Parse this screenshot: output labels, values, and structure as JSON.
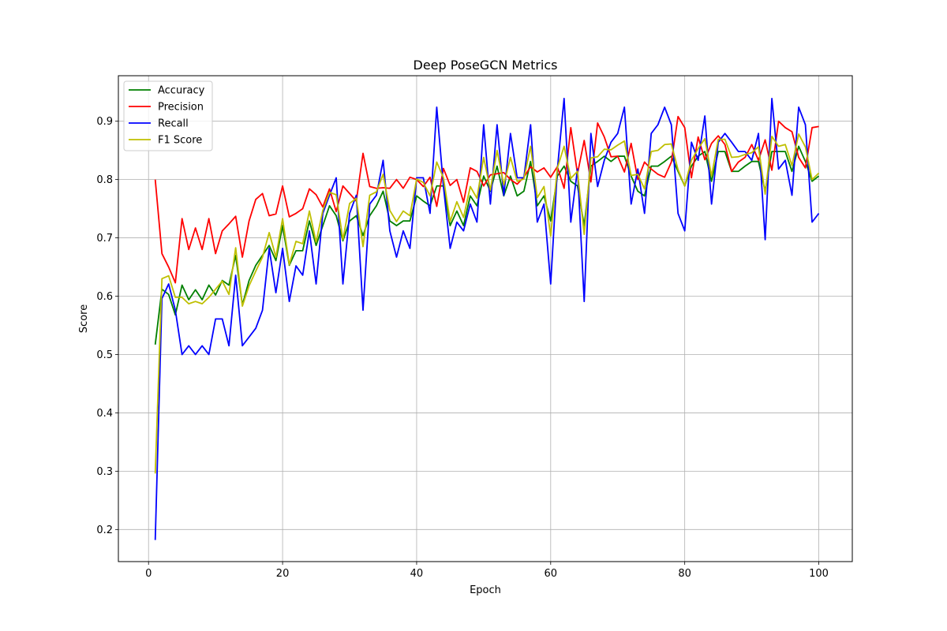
{
  "chart_data": {
    "type": "line",
    "title": "Deep PoseGCN Metrics",
    "xlabel": "Epoch",
    "ylabel": "Score",
    "xlim": [
      -4.5,
      105
    ],
    "ylim": [
      0.145,
      0.978
    ],
    "xticks": [
      0,
      20,
      40,
      60,
      80,
      100
    ],
    "yticks": [
      0.2,
      0.3,
      0.4,
      0.5,
      0.6,
      0.7,
      0.8,
      0.9
    ],
    "grid": true,
    "legend_position": "top-left",
    "x": [
      1,
      2,
      3,
      4,
      5,
      6,
      7,
      8,
      9,
      10,
      11,
      12,
      13,
      14,
      15,
      16,
      17,
      18,
      19,
      20,
      21,
      22,
      23,
      24,
      25,
      26,
      27,
      28,
      29,
      30,
      31,
      32,
      33,
      34,
      35,
      36,
      37,
      38,
      39,
      40,
      41,
      42,
      43,
      44,
      45,
      46,
      47,
      48,
      49,
      50,
      51,
      52,
      53,
      54,
      55,
      56,
      57,
      58,
      59,
      60,
      61,
      62,
      63,
      64,
      65,
      66,
      67,
      68,
      69,
      70,
      71,
      72,
      73,
      74,
      75,
      76,
      77,
      78,
      79,
      80,
      81,
      82,
      83,
      84,
      85,
      86,
      87,
      88,
      89,
      90,
      91,
      92,
      93,
      94,
      95,
      96,
      97,
      98,
      99,
      100
    ],
    "series": [
      {
        "name": "Accuracy",
        "color": "#008000",
        "values": [
          0.517,
          0.612,
          0.603,
          0.568,
          0.619,
          0.594,
          0.611,
          0.594,
          0.619,
          0.602,
          0.627,
          0.619,
          0.67,
          0.585,
          0.627,
          0.653,
          0.67,
          0.687,
          0.661,
          0.721,
          0.653,
          0.678,
          0.678,
          0.729,
          0.687,
          0.721,
          0.755,
          0.738,
          0.695,
          0.729,
          0.738,
          0.704,
          0.738,
          0.755,
          0.78,
          0.729,
          0.721,
          0.729,
          0.729,
          0.772,
          0.763,
          0.755,
          0.789,
          0.789,
          0.721,
          0.746,
          0.721,
          0.772,
          0.755,
          0.806,
          0.78,
          0.823,
          0.772,
          0.806,
          0.772,
          0.78,
          0.831,
          0.755,
          0.772,
          0.729,
          0.806,
          0.823,
          0.797,
          0.789,
          0.721,
          0.823,
          0.831,
          0.84,
          0.831,
          0.84,
          0.84,
          0.806,
          0.78,
          0.772,
          0.823,
          0.823,
          0.831,
          0.84,
          0.814,
          0.789,
          0.823,
          0.84,
          0.848,
          0.797,
          0.848,
          0.848,
          0.814,
          0.814,
          0.823,
          0.831,
          0.831,
          0.78,
          0.848,
          0.848,
          0.848,
          0.814,
          0.857,
          0.831,
          0.797,
          0.806
        ]
      },
      {
        "name": "Precision",
        "color": "#ff0000",
        "values": [
          0.8,
          0.673,
          0.65,
          0.623,
          0.733,
          0.68,
          0.717,
          0.68,
          0.733,
          0.673,
          0.712,
          0.724,
          0.737,
          0.667,
          0.729,
          0.766,
          0.776,
          0.738,
          0.741,
          0.789,
          0.736,
          0.742,
          0.75,
          0.784,
          0.774,
          0.753,
          0.784,
          0.745,
          0.789,
          0.776,
          0.763,
          0.845,
          0.788,
          0.785,
          0.786,
          0.785,
          0.8,
          0.785,
          0.804,
          0.8,
          0.788,
          0.804,
          0.754,
          0.819,
          0.79,
          0.8,
          0.761,
          0.82,
          0.814,
          0.789,
          0.808,
          0.81,
          0.812,
          0.8,
          0.792,
          0.804,
          0.822,
          0.813,
          0.82,
          0.804,
          0.822,
          0.785,
          0.889,
          0.81,
          0.867,
          0.796,
          0.897,
          0.873,
          0.839,
          0.84,
          0.813,
          0.862,
          0.8,
          0.83,
          0.818,
          0.809,
          0.804,
          0.83,
          0.908,
          0.889,
          0.803,
          0.873,
          0.834,
          0.862,
          0.875,
          0.86,
          0.814,
          0.83,
          0.838,
          0.86,
          0.833,
          0.868,
          0.816,
          0.9,
          0.889,
          0.882,
          0.838,
          0.82,
          0.889,
          0.891
        ]
      },
      {
        "name": "Recall",
        "color": "#0000ff",
        "values": [
          0.182,
          0.596,
          0.621,
          0.576,
          0.5,
          0.515,
          0.5,
          0.515,
          0.5,
          0.561,
          0.561,
          0.515,
          0.636,
          0.515,
          0.53,
          0.545,
          0.576,
          0.682,
          0.606,
          0.682,
          0.591,
          0.652,
          0.636,
          0.712,
          0.621,
          0.742,
          0.773,
          0.803,
          0.621,
          0.742,
          0.773,
          0.576,
          0.758,
          0.773,
          0.833,
          0.712,
          0.667,
          0.712,
          0.682,
          0.803,
          0.803,
          0.742,
          0.924,
          0.788,
          0.682,
          0.727,
          0.712,
          0.758,
          0.727,
          0.894,
          0.758,
          0.894,
          0.773,
          0.879,
          0.803,
          0.803,
          0.894,
          0.727,
          0.758,
          0.621,
          0.818,
          0.939,
          0.727,
          0.818,
          0.591,
          0.879,
          0.788,
          0.833,
          0.864,
          0.879,
          0.924,
          0.758,
          0.818,
          0.742,
          0.879,
          0.894,
          0.924,
          0.894,
          0.742,
          0.712,
          0.864,
          0.833,
          0.909,
          0.758,
          0.864,
          0.879,
          0.864,
          0.848,
          0.848,
          0.833,
          0.879,
          0.697,
          0.939,
          0.818,
          0.833,
          0.773,
          0.924,
          0.894,
          0.727,
          0.742
        ]
      },
      {
        "name": "F1 Score",
        "color": "#bfbf00",
        "values": [
          0.296,
          0.63,
          0.635,
          0.598,
          0.598,
          0.587,
          0.591,
          0.587,
          0.598,
          0.612,
          0.626,
          0.603,
          0.683,
          0.583,
          0.618,
          0.643,
          0.667,
          0.709,
          0.667,
          0.733,
          0.654,
          0.694,
          0.69,
          0.746,
          0.693,
          0.747,
          0.778,
          0.774,
          0.697,
          0.759,
          0.768,
          0.685,
          0.773,
          0.779,
          0.809,
          0.747,
          0.728,
          0.746,
          0.738,
          0.801,
          0.795,
          0.772,
          0.83,
          0.803,
          0.728,
          0.762,
          0.735,
          0.788,
          0.768,
          0.838,
          0.782,
          0.85,
          0.791,
          0.838,
          0.797,
          0.801,
          0.857,
          0.769,
          0.788,
          0.703,
          0.82,
          0.857,
          0.802,
          0.814,
          0.706,
          0.837,
          0.839,
          0.852,
          0.851,
          0.859,
          0.866,
          0.807,
          0.809,
          0.784,
          0.848,
          0.85,
          0.86,
          0.861,
          0.817,
          0.789,
          0.833,
          0.853,
          0.87,
          0.806,
          0.869,
          0.869,
          0.838,
          0.839,
          0.843,
          0.846,
          0.856,
          0.775,
          0.874,
          0.857,
          0.86,
          0.824,
          0.878,
          0.856,
          0.8,
          0.811
        ]
      }
    ]
  }
}
